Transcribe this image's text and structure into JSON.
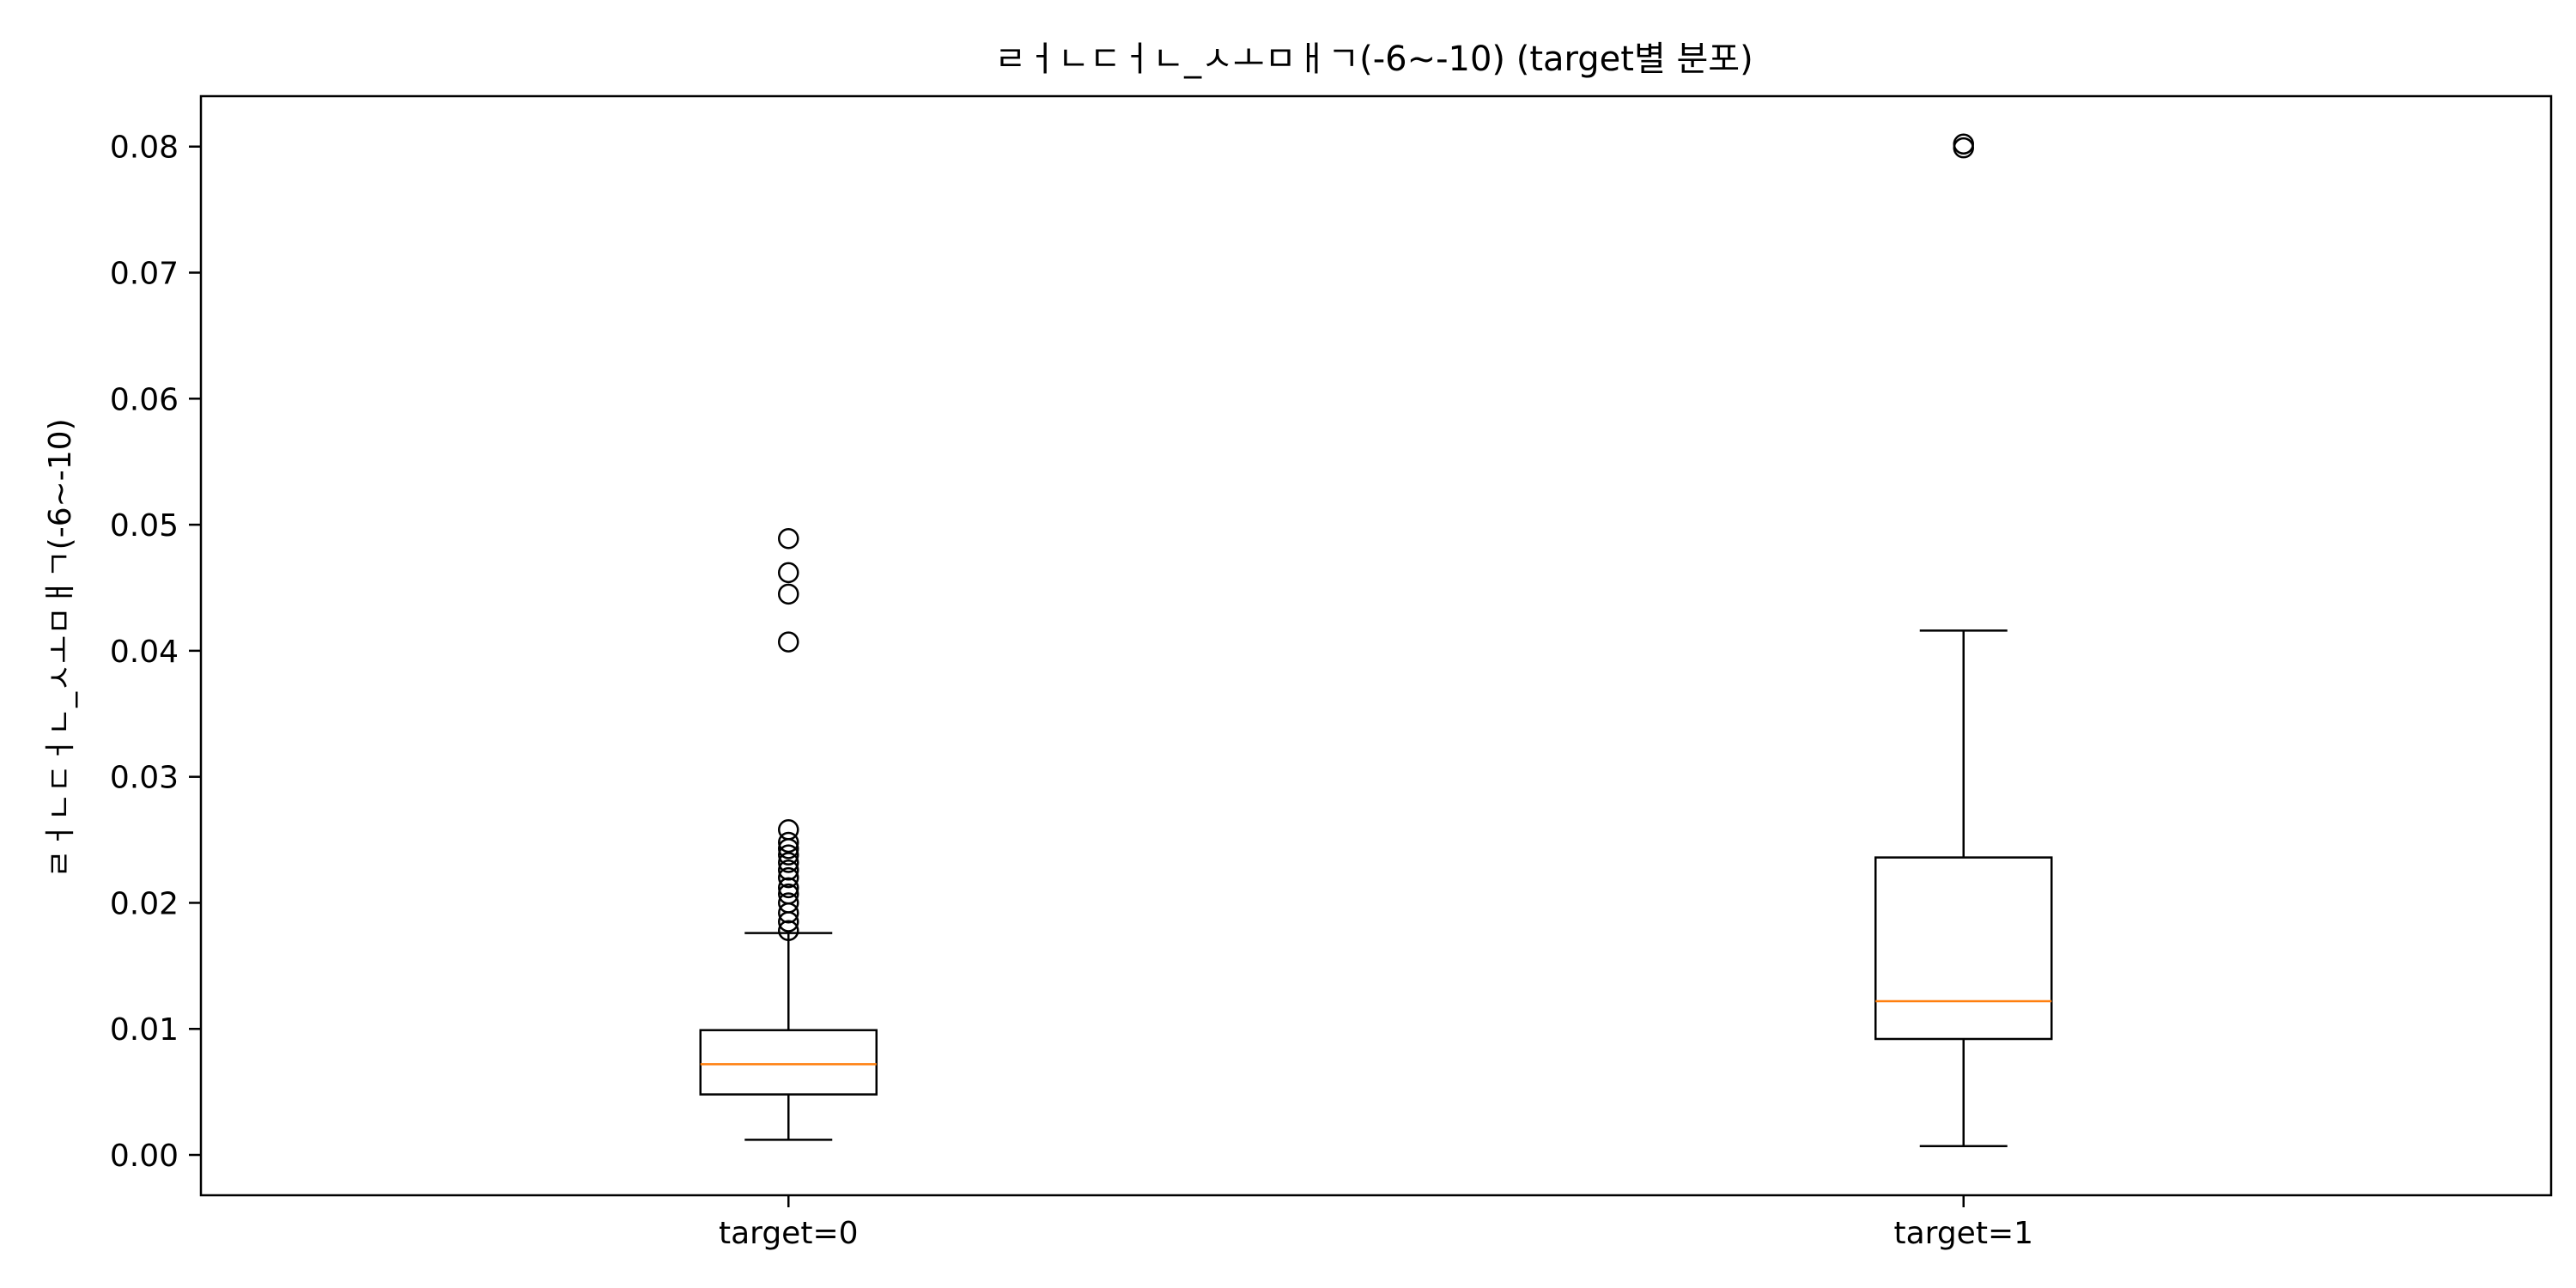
{
  "chart_data": {
    "type": "box",
    "title": "ㄹㅓㄴㄷㅓㄴ_ㅅㅗㅁㅐㄱ(-6~-10) (target별 분포)",
    "xlabel": "",
    "ylabel": "ㄹㅓㄴㄷㅓㄴ_ㅅㅗㅁㅐㄱ(-6~-10)",
    "ylim": [
      -0.0032,
      0.084
    ],
    "yticks": [
      0.0,
      0.01,
      0.02,
      0.03,
      0.04,
      0.05,
      0.06,
      0.07,
      0.08
    ],
    "ytick_labels": [
      "0.00",
      "0.01",
      "0.02",
      "0.03",
      "0.04",
      "0.05",
      "0.06",
      "0.07",
      "0.08"
    ],
    "grid": false,
    "categories": [
      "target=0",
      "target=1"
    ],
    "boxes": [
      {
        "category": "target=0",
        "whisker_low": 0.0012,
        "q1": 0.0048,
        "median": 0.0072,
        "q3": 0.0099,
        "whisker_high": 0.0176,
        "outliers": [
          0.0178,
          0.0185,
          0.0192,
          0.02,
          0.0207,
          0.0212,
          0.022,
          0.0226,
          0.0232,
          0.0238,
          0.0243,
          0.0248,
          0.0258,
          0.0407,
          0.0445,
          0.0462,
          0.0489
        ]
      },
      {
        "category": "target=1",
        "whisker_low": 0.0007,
        "q1": 0.0092,
        "median": 0.0122,
        "q3": 0.0236,
        "whisker_high": 0.0416,
        "outliers": [
          0.0799,
          0.0802
        ]
      }
    ],
    "colors": {
      "box": "#000000",
      "median": "#ff7f0e",
      "background": "#ffffff"
    }
  }
}
